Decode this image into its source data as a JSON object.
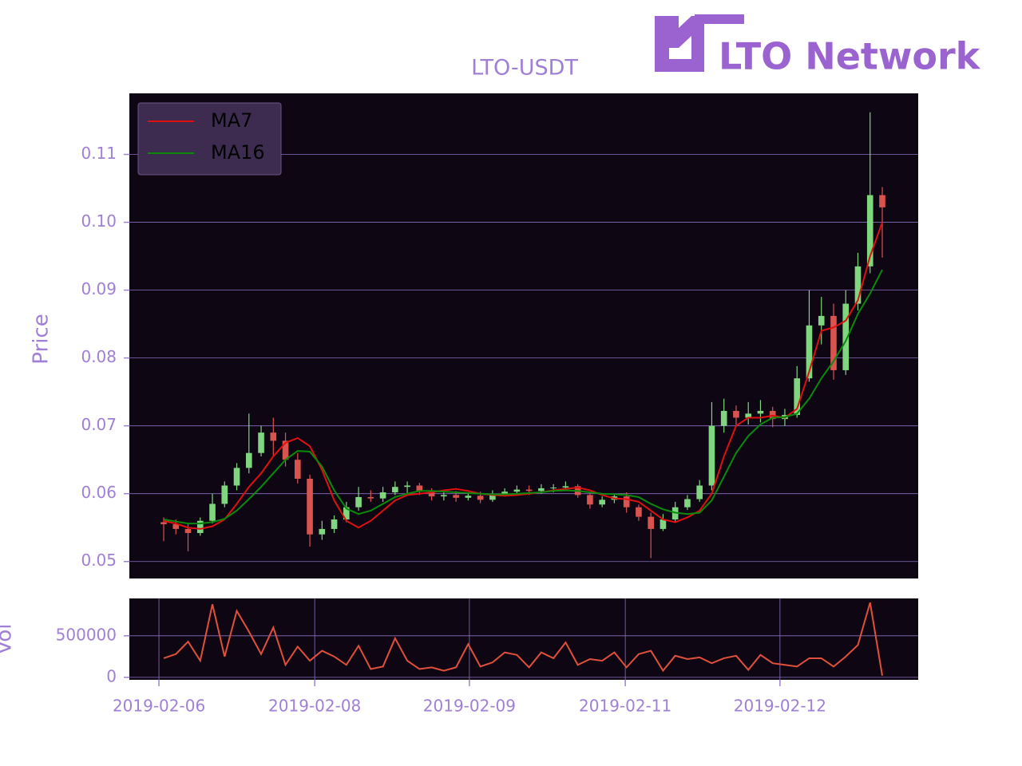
{
  "chart_data": [
    {
      "type": "candlestick",
      "title": "LTO-USDT",
      "logo_text": "LTO Network",
      "ylabel": "Price",
      "up_color": "#7fd67f",
      "down_color": "#d9534f",
      "xlim": [
        -2.82,
        61.95
      ],
      "ylim": [
        0.0475,
        0.119
      ],
      "yticks": [
        0.05,
        0.06,
        0.07,
        0.08,
        0.09,
        {
          "value": 0.1,
          "label": "0.10"
        },
        0.11
      ],
      "grid": true,
      "legend": "upper left",
      "open": [
        0.0558,
        0.0555,
        0.0548,
        0.0542,
        0.056,
        0.0585,
        0.0612,
        0.0638,
        0.066,
        0.069,
        0.0678,
        0.065,
        0.0622,
        0.054,
        0.0548,
        0.0562,
        0.058,
        0.0595,
        0.0593,
        0.0602,
        0.061,
        0.0612,
        0.0603,
        0.0596,
        0.0598,
        0.0594,
        0.0597,
        0.0591,
        0.06,
        0.0603,
        0.0606,
        0.0604,
        0.0608,
        0.0609,
        0.0611,
        0.0598,
        0.0584,
        0.0591,
        0.0596,
        0.058,
        0.0566,
        0.0548,
        0.0562,
        0.058,
        0.0592,
        0.0612,
        0.07,
        0.0722,
        0.0712,
        0.0718,
        0.0722,
        0.071,
        0.0716,
        0.077,
        0.0848,
        0.0862,
        0.0782,
        0.088,
        0.0935,
        0.104
      ],
      "high": [
        0.0565,
        0.0562,
        0.0556,
        0.0565,
        0.06,
        0.0618,
        0.0645,
        0.0718,
        0.07,
        0.0712,
        0.069,
        0.066,
        0.0628,
        0.056,
        0.0568,
        0.0588,
        0.061,
        0.0605,
        0.061,
        0.0618,
        0.0618,
        0.0616,
        0.0608,
        0.0605,
        0.0604,
        0.0602,
        0.0603,
        0.0605,
        0.0608,
        0.0612,
        0.0612,
        0.0614,
        0.0614,
        0.0618,
        0.0614,
        0.06,
        0.0596,
        0.06,
        0.0602,
        0.0584,
        0.0572,
        0.057,
        0.0588,
        0.0598,
        0.062,
        0.0735,
        0.074,
        0.073,
        0.0735,
        0.0738,
        0.0728,
        0.0725,
        0.0788,
        0.09,
        0.089,
        0.088,
        0.09,
        0.0955,
        0.1162,
        0.1052
      ],
      "low": [
        0.053,
        0.054,
        0.0515,
        0.0538,
        0.0556,
        0.058,
        0.0605,
        0.063,
        0.0655,
        0.0655,
        0.064,
        0.0615,
        0.0522,
        0.0532,
        0.0542,
        0.0558,
        0.0575,
        0.0588,
        0.0588,
        0.0598,
        0.06,
        0.0598,
        0.059,
        0.059,
        0.0588,
        0.059,
        0.0586,
        0.0588,
        0.0596,
        0.06,
        0.0598,
        0.06,
        0.0602,
        0.0604,
        0.0594,
        0.0578,
        0.058,
        0.0586,
        0.0572,
        0.056,
        0.0505,
        0.0545,
        0.0558,
        0.0576,
        0.0588,
        0.0605,
        0.069,
        0.0698,
        0.0702,
        0.0705,
        0.0698,
        0.07,
        0.0712,
        0.0765,
        0.082,
        0.0768,
        0.0775,
        0.087,
        0.0925,
        0.0948
      ],
      "close": [
        0.0555,
        0.0548,
        0.0542,
        0.056,
        0.0585,
        0.0612,
        0.0638,
        0.066,
        0.069,
        0.0678,
        0.065,
        0.0622,
        0.054,
        0.0548,
        0.0562,
        0.058,
        0.0595,
        0.0593,
        0.0602,
        0.061,
        0.0612,
        0.0603,
        0.0596,
        0.0598,
        0.0594,
        0.0597,
        0.0591,
        0.06,
        0.0603,
        0.0606,
        0.0604,
        0.0608,
        0.0609,
        0.0611,
        0.0598,
        0.0584,
        0.0591,
        0.0596,
        0.058,
        0.0566,
        0.0548,
        0.0562,
        0.058,
        0.0592,
        0.0612,
        0.07,
        0.0722,
        0.0712,
        0.0718,
        0.0722,
        0.071,
        0.0716,
        0.077,
        0.0848,
        0.0862,
        0.0782,
        0.088,
        0.0935,
        0.104,
        0.1022
      ],
      "series": [
        {
          "name": "MA7",
          "color": "#e01010",
          "values": [
            0.056,
            0.0556,
            0.055,
            0.0548,
            0.0552,
            0.0562,
            0.0585,
            0.061,
            0.063,
            0.0655,
            0.0675,
            0.0682,
            0.067,
            0.0635,
            0.059,
            0.056,
            0.055,
            0.056,
            0.0575,
            0.059,
            0.0598,
            0.06,
            0.0602,
            0.0605,
            0.0607,
            0.0604,
            0.06,
            0.0598,
            0.0597,
            0.0598,
            0.06,
            0.0602,
            0.0605,
            0.0607,
            0.0609,
            0.0605,
            0.0598,
            0.0593,
            0.0592,
            0.0588,
            0.0575,
            0.0562,
            0.0558,
            0.0565,
            0.0575,
            0.06,
            0.0655,
            0.07,
            0.0712,
            0.0712,
            0.0715,
            0.0712,
            0.0725,
            0.078,
            0.084,
            0.0845,
            0.0855,
            0.0885,
            0.095,
            0.1
          ]
        },
        {
          "name": "MA16",
          "color": "#0a8a0a",
          "values": [
            0.0562,
            0.0559,
            0.0556,
            0.0556,
            0.0558,
            0.0563,
            0.0575,
            0.0592,
            0.061,
            0.063,
            0.065,
            0.0663,
            0.0662,
            0.064,
            0.0605,
            0.0578,
            0.057,
            0.0575,
            0.0585,
            0.0595,
            0.06,
            0.0604,
            0.0604,
            0.0603,
            0.0602,
            0.0601,
            0.06,
            0.0599,
            0.0599,
            0.06,
            0.0601,
            0.0602,
            0.0604,
            0.0605,
            0.0604,
            0.0602,
            0.06,
            0.0599,
            0.0598,
            0.0595,
            0.0585,
            0.0577,
            0.0572,
            0.057,
            0.0572,
            0.059,
            0.0625,
            0.066,
            0.0685,
            0.0702,
            0.0712,
            0.0713,
            0.0718,
            0.074,
            0.077,
            0.0795,
            0.0825,
            0.0865,
            0.0895,
            0.093
          ]
        }
      ]
    },
    {
      "type": "line",
      "ylabel": "Vol",
      "color": "#e0503a",
      "xlim": [
        -2.82,
        61.95
      ],
      "ylim": [
        -30000,
        950000
      ],
      "yticks": [
        0,
        500000
      ],
      "grid": true,
      "xticks": [
        {
          "value": -0.39,
          "label": "2019-02-06"
        },
        {
          "value": 12.4,
          "label": "2019-02-08"
        },
        {
          "value": 25.1,
          "label": "2019-02-09"
        },
        {
          "value": 37.9,
          "label": "2019-02-11"
        },
        {
          "value": 50.6,
          "label": "2019-02-12"
        }
      ],
      "values": [
        230000,
        280000,
        430000,
        200000,
        880000,
        250000,
        800000,
        550000,
        280000,
        600000,
        150000,
        370000,
        200000,
        320000,
        250000,
        150000,
        380000,
        100000,
        130000,
        470000,
        200000,
        100000,
        120000,
        80000,
        120000,
        400000,
        130000,
        180000,
        300000,
        270000,
        120000,
        300000,
        230000,
        420000,
        150000,
        220000,
        200000,
        300000,
        120000,
        280000,
        320000,
        80000,
        260000,
        220000,
        240000,
        170000,
        230000,
        260000,
        90000,
        270000,
        170000,
        150000,
        130000,
        230000,
        230000,
        130000,
        250000,
        390000,
        900000,
        20000
      ]
    }
  ]
}
